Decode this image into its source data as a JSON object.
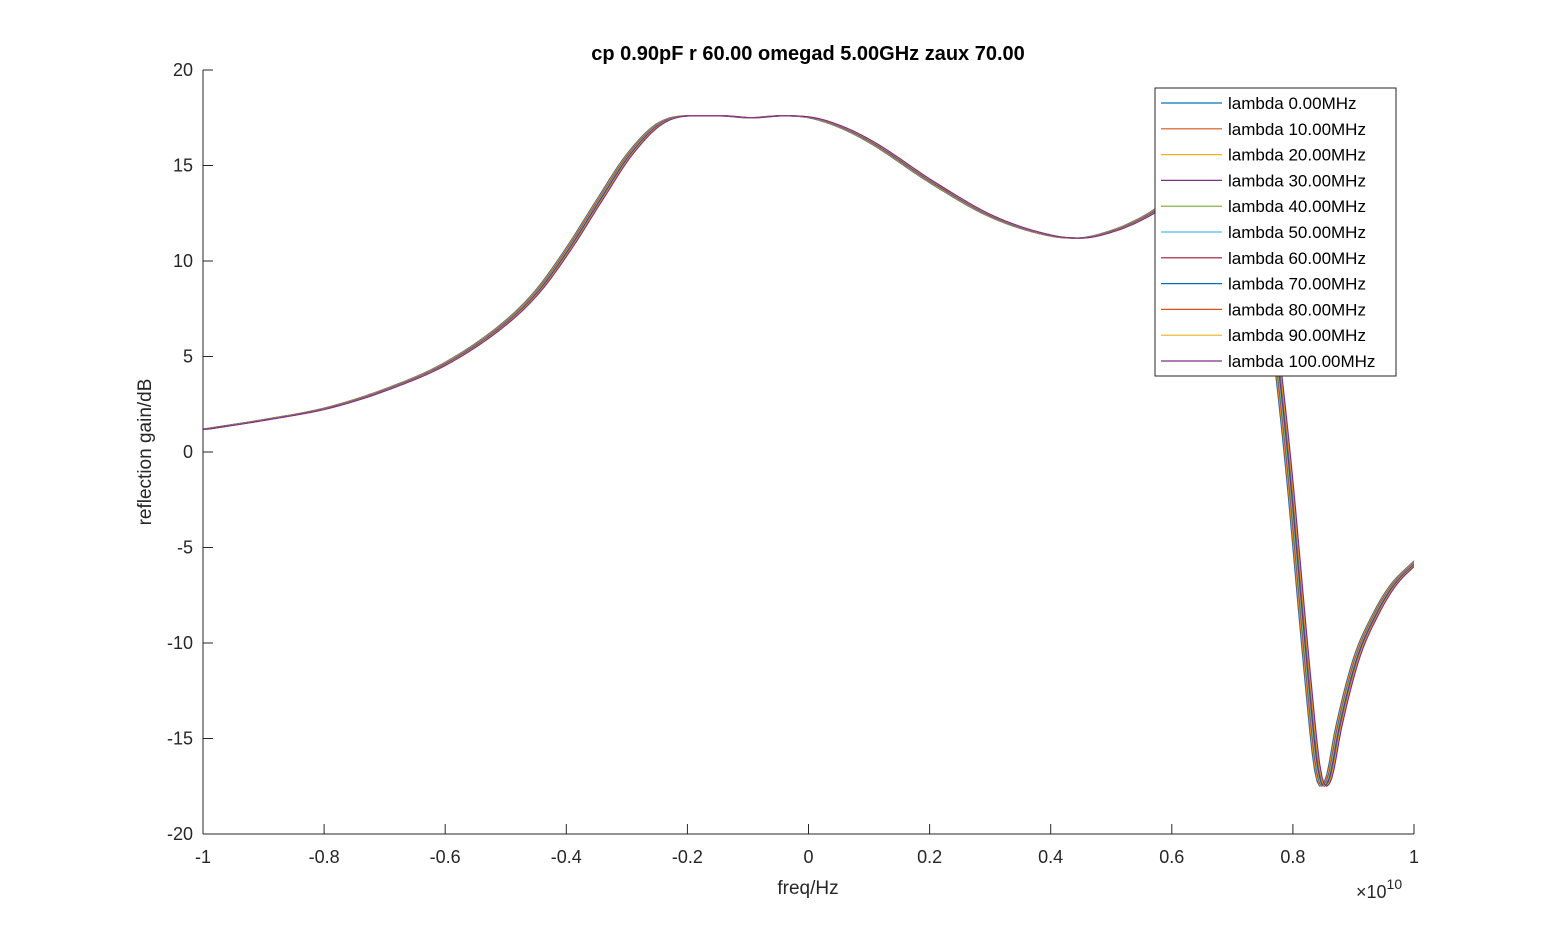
{
  "chart_data": {
    "type": "line",
    "title": "cp 0.90pF r 60.00 omegad 5.00GHz zaux 70.00",
    "xlabel": "freq/Hz",
    "ylabel": "reflection gain/dB",
    "x_exponent_base": "×10",
    "x_exponent_power": "10",
    "xlim": [
      -1,
      1
    ],
    "ylim": [
      -20,
      20
    ],
    "x_ticks": [
      -1,
      -0.8,
      -0.6,
      -0.4,
      -0.2,
      0,
      0.2,
      0.4,
      0.6,
      0.8,
      1
    ],
    "x_tick_labels": [
      "-1",
      "-0.8",
      "-0.6",
      "-0.4",
      "-0.2",
      "0",
      "0.2",
      "0.4",
      "0.6",
      "0.8",
      "1"
    ],
    "y_ticks": [
      20,
      15,
      10,
      5,
      0,
      -5,
      -10,
      -15,
      -20
    ],
    "y_tick_labels": [
      "20",
      "15",
      "10",
      "5",
      "0",
      "-5",
      "-10",
      "-15",
      "-20"
    ],
    "grid": false,
    "legend_position": "top-right",
    "base_curve": {
      "x": [
        -1,
        -0.9,
        -0.8,
        -0.7,
        -0.6,
        -0.5,
        -0.45,
        -0.4,
        -0.35,
        -0.3,
        -0.25,
        -0.2,
        -0.15,
        -0.1,
        -0.05,
        0,
        0.05,
        0.1,
        0.2,
        0.3,
        0.4,
        0.44,
        0.5,
        0.55,
        0.6,
        0.65,
        0.7,
        0.73,
        0.75,
        0.77,
        0.79,
        0.8,
        0.82,
        0.835,
        0.845,
        0.855,
        0.87,
        0.9,
        0.93,
        0.96,
        1.0
      ],
      "y": [
        1.2,
        1.7,
        2.3,
        3.3,
        4.7,
        6.9,
        8.5,
        10.7,
        13.2,
        15.6,
        17.2,
        17.6,
        17.6,
        17.5,
        17.6,
        17.5,
        17.0,
        16.2,
        14.1,
        12.3,
        11.3,
        11.2,
        11.6,
        12.3,
        13.3,
        14.2,
        14.3,
        12.8,
        9.5,
        4.5,
        -1.5,
        -5.0,
        -12.0,
        -16.5,
        -17.5,
        -17.0,
        -14.5,
        -10.8,
        -8.6,
        -7.0,
        -5.7
      ]
    },
    "series": [
      {
        "name": "lambda 0.00MHz",
        "x_shift": 0.0,
        "color": "#0072BD"
      },
      {
        "name": "lambda 10.00MHz",
        "x_shift": 0.001,
        "color": "#D95319"
      },
      {
        "name": "lambda 20.00MHz",
        "x_shift": 0.002,
        "color": "#EDB120"
      },
      {
        "name": "lambda 30.00MHz",
        "x_shift": 0.003,
        "color": "#7E2F8E"
      },
      {
        "name": "lambda 40.00MHz",
        "x_shift": 0.004,
        "color": "#77AC30"
      },
      {
        "name": "lambda 50.00MHz",
        "x_shift": 0.005,
        "color": "#4DBEEE"
      },
      {
        "name": "lambda 60.00MHz",
        "x_shift": 0.006,
        "color": "#A2142F"
      },
      {
        "name": "lambda 70.00MHz",
        "x_shift": 0.007,
        "color": "#0072BD"
      },
      {
        "name": "lambda 80.00MHz",
        "x_shift": 0.008,
        "color": "#D95319"
      },
      {
        "name": "lambda 90.00MHz",
        "x_shift": 0.009,
        "color": "#EDB120"
      },
      {
        "name": "lambda 100.00MHz",
        "x_shift": 0.01,
        "color": "#7E2F8E"
      }
    ]
  }
}
